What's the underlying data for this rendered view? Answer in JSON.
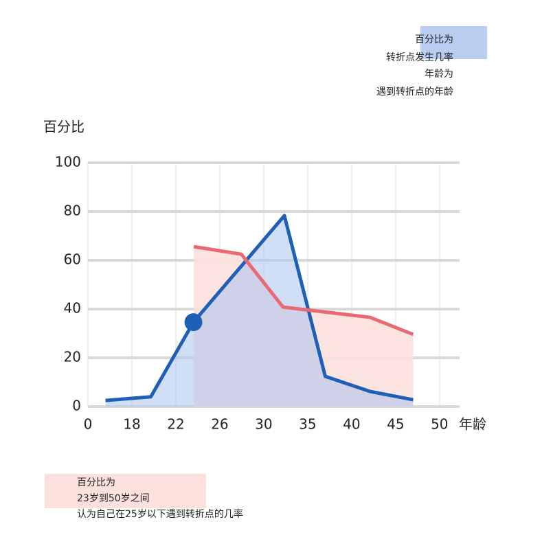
{
  "chart_data": {
    "type": "line",
    "y_label": "百分比",
    "x_label": "年龄",
    "xlim": [
      0,
      8.3
    ],
    "xticks": [
      {
        "value": 0,
        "label": "0"
      },
      {
        "value": 1,
        "label": "18"
      },
      {
        "value": 2,
        "label": "22"
      },
      {
        "value": 3,
        "label": "26"
      },
      {
        "value": 4,
        "label": "30"
      },
      {
        "value": 5,
        "label": "35"
      },
      {
        "value": 6,
        "label": "40"
      },
      {
        "value": 7,
        "label": "45"
      },
      {
        "value": 8,
        "label": "50"
      }
    ],
    "ylim": [
      0,
      100
    ],
    "yticks": [
      0,
      20,
      40,
      60,
      80,
      100
    ],
    "grid": true,
    "series": [
      {
        "name": [
          "百分比为",
          "转折点发生几率"
        ],
        "color": "#1f5fb5",
        "fill": "#a9c2ee",
        "x": [
          0.4,
          1.43,
          2.4,
          4.47,
          5.4,
          6.42,
          7.4
        ],
        "values": [
          2.5,
          4,
          34.6,
          78.3,
          12.4,
          6.2,
          2.8
        ],
        "markers": [
          false,
          false,
          true,
          false,
          false,
          false,
          false
        ]
      },
      {
        "name": [
          "百分比为",
          "23岁到50岁之间",
          "认为自己在25岁以下遇到转折点的几率"
        ],
        "color": "#e86a73",
        "fill": "#fbe0db",
        "x": [
          2.41,
          3.49,
          4.44,
          6.42,
          7.4
        ],
        "values": [
          65.6,
          62.5,
          40.8,
          36.6,
          29.6
        ]
      }
    ],
    "annotation": [
      "年龄为",
      "遇到转折点的年龄"
    ]
  }
}
